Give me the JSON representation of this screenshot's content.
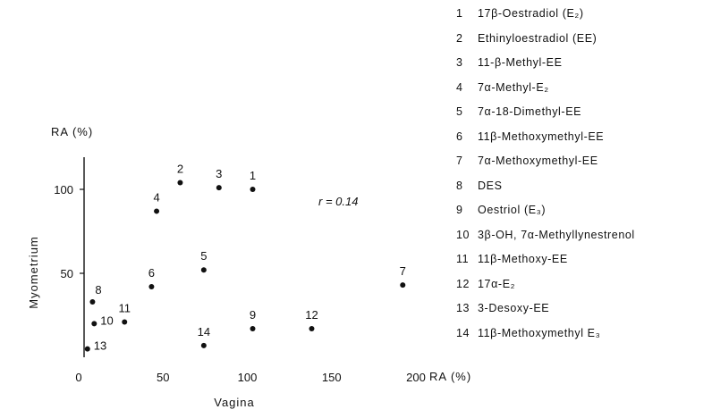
{
  "chart_data": {
    "type": "scatter",
    "xlabel": "Vagina",
    "ylabel": "Myometrium",
    "x_unit_label": "RA (%)",
    "y_unit_label": "RA (%)",
    "xlim": [
      0,
      200
    ],
    "ylim": [
      0,
      120
    ],
    "x_ticks": [
      0,
      50,
      100,
      150,
      200
    ],
    "y_ticks": [
      50,
      100
    ],
    "x_tick_labels": [
      "0",
      "50",
      "100",
      "150",
      "200"
    ],
    "y_tick_labels": [
      "50",
      "100"
    ],
    "annotation": "r = 0.14",
    "grid": false,
    "legend_position": "right",
    "points": [
      {
        "label": "1",
        "x": 100,
        "y": 100
      },
      {
        "label": "2",
        "x": 57,
        "y": 104
      },
      {
        "label": "3",
        "x": 80,
        "y": 101
      },
      {
        "label": "4",
        "x": 43,
        "y": 87
      },
      {
        "label": "5",
        "x": 71,
        "y": 52
      },
      {
        "label": "6",
        "x": 40,
        "y": 42
      },
      {
        "label": "7",
        "x": 189,
        "y": 43
      },
      {
        "label": "8",
        "x": 5,
        "y": 33
      },
      {
        "label": "9",
        "x": 100,
        "y": 17
      },
      {
        "label": "10",
        "x": 6,
        "y": 20
      },
      {
        "label": "11",
        "x": 24,
        "y": 21
      },
      {
        "label": "12",
        "x": 135,
        "y": 17
      },
      {
        "label": "13",
        "x": 2,
        "y": 5
      },
      {
        "label": "14",
        "x": 71,
        "y": 7
      }
    ],
    "legend": [
      {
        "num": "1",
        "text": "17β-Oestradiol (E₂)"
      },
      {
        "num": "2",
        "text": "Ethinyloestradiol (EE)"
      },
      {
        "num": "3",
        "text": "11-β-Methyl-EE"
      },
      {
        "num": "4",
        "text": "7α-Methyl-E₂"
      },
      {
        "num": "5",
        "text": "7α-18-Dimethyl-EE"
      },
      {
        "num": "6",
        "text": "11β-Methoxymethyl-EE"
      },
      {
        "num": "7",
        "text": "7α-Methoxymethyl-EE"
      },
      {
        "num": "8",
        "text": "DES"
      },
      {
        "num": "9",
        "text": "Oestriol (E₃)"
      },
      {
        "num": "10",
        "text": "3β-OH, 7α-Methyllynestrenol"
      },
      {
        "num": "11",
        "text": "11β-Methoxy-EE"
      },
      {
        "num": "12",
        "text": "17α-E₂"
      },
      {
        "num": "13",
        "text": "3-Desoxy-EE"
      },
      {
        "num": "14",
        "text": "11β-Methoxymethyl E₃"
      }
    ]
  }
}
